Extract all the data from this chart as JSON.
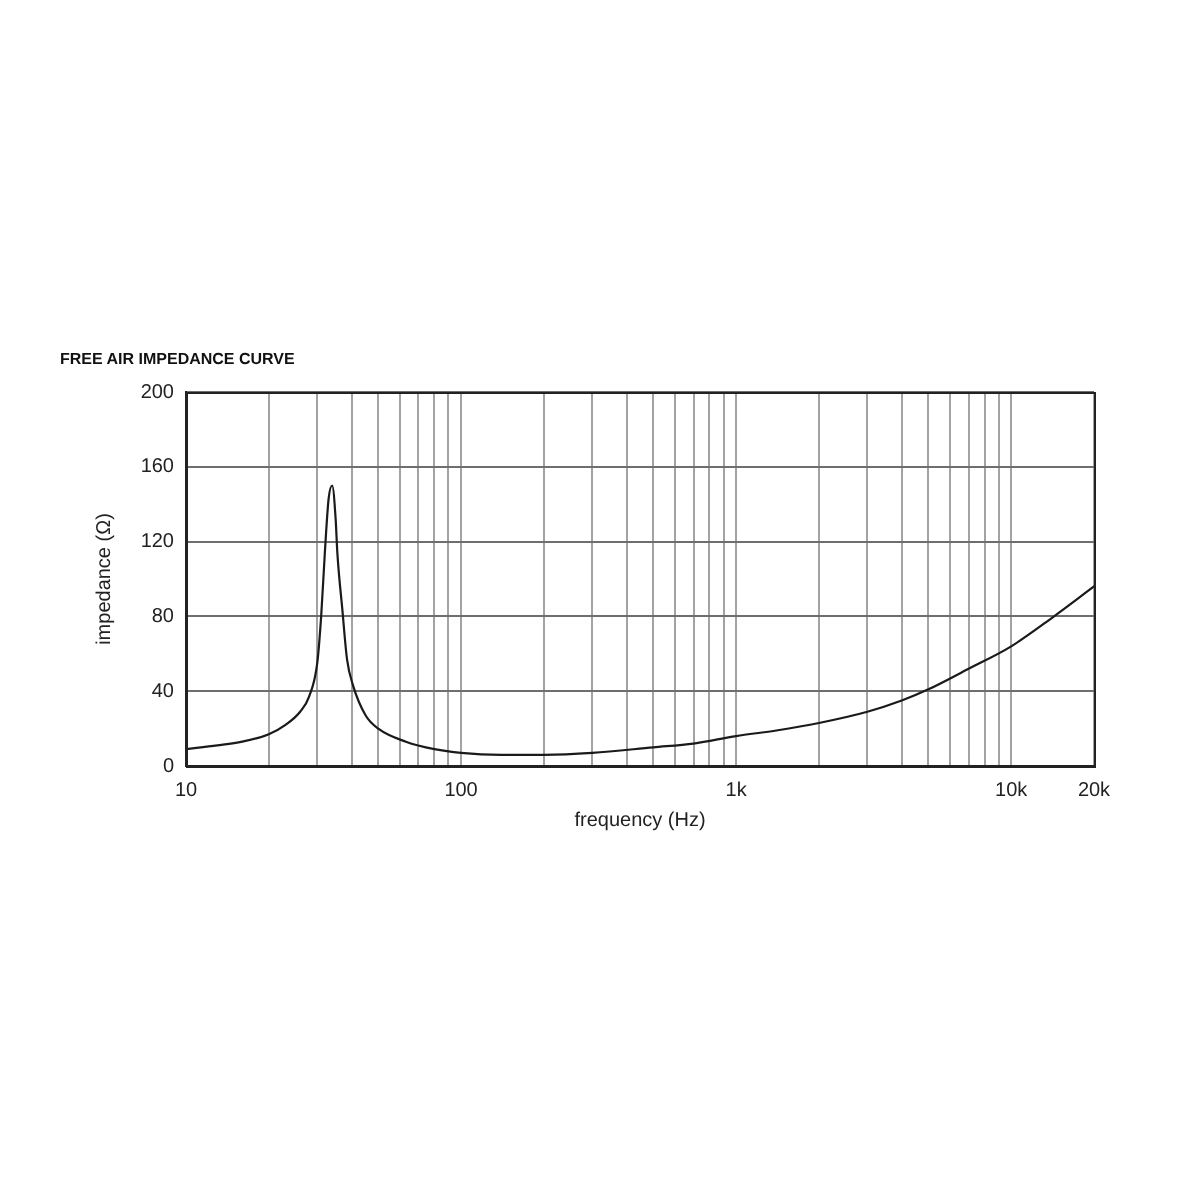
{
  "chart_data": {
    "type": "line",
    "title": "FREE AIR IMPEDANCE CURVE",
    "xlabel": "frequency (Hz)",
    "ylabel": "impedance (Ω)",
    "x": [
      10,
      13,
      16,
      20,
      23,
      26,
      28,
      30,
      31,
      32,
      33,
      34,
      35,
      35.5,
      37,
      38.5,
      40.5,
      45,
      50,
      63,
      80,
      100,
      140,
      200,
      300,
      500,
      700,
      1000,
      1400,
      2000,
      3000,
      4000,
      5000,
      7000,
      10000,
      14000,
      20000
    ],
    "series": [
      {
        "color": "#1a1a1a",
        "values": [
          9,
          11,
          13,
          17,
          22,
          29,
          37,
          55,
          80,
          115,
          143,
          150,
          132,
          114,
          84,
          57,
          43,
          27,
          20,
          13,
          9,
          7,
          6,
          6,
          7,
          10,
          12,
          16,
          19,
          23,
          29,
          35,
          41,
          52,
          64,
          79,
          96
        ]
      }
    ],
    "log": "x",
    "xlim": [
      10,
      20000
    ],
    "xticks": [
      10,
      {
        "value": 20,
        "label": null
      },
      {
        "value": 30,
        "label": null
      },
      {
        "value": 40,
        "label": null
      },
      {
        "value": 50,
        "label": null
      },
      {
        "value": 60,
        "label": null
      },
      {
        "value": 70,
        "label": null
      },
      {
        "value": 80,
        "label": null
      },
      {
        "value": 90,
        "label": null
      },
      100,
      {
        "value": 200,
        "label": null
      },
      {
        "value": 300,
        "label": null
      },
      {
        "value": 400,
        "label": null
      },
      {
        "value": 500,
        "label": null
      },
      {
        "value": 600,
        "label": null
      },
      {
        "value": 700,
        "label": null
      },
      {
        "value": 800,
        "label": null
      },
      {
        "value": 900,
        "label": null
      },
      {
        "value": 1000,
        "label": "1k"
      },
      {
        "value": 2000,
        "label": null
      },
      {
        "value": 3000,
        "label": null
      },
      {
        "value": 4000,
        "label": null
      },
      {
        "value": 5000,
        "label": null
      },
      {
        "value": 6000,
        "label": null
      },
      {
        "value": 7000,
        "label": null
      },
      {
        "value": 8000,
        "label": null
      },
      {
        "value": 9000,
        "label": null
      },
      {
        "value": 10000,
        "label": "10k"
      },
      {
        "value": 20000,
        "label": "20k"
      }
    ],
    "ylim": [
      0,
      200
    ],
    "yticks": [
      0,
      40,
      80,
      120,
      160,
      200
    ],
    "grid": true,
    "marker": "none",
    "line_style": "solid"
  }
}
